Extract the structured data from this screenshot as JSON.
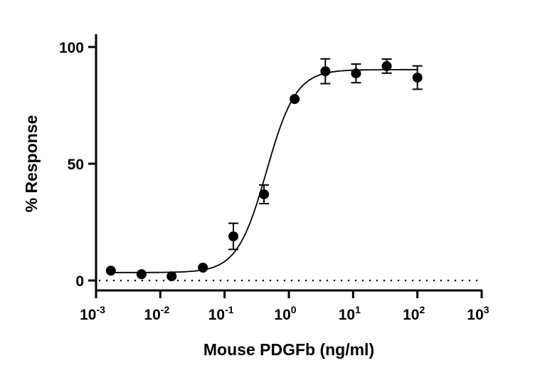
{
  "chart_data": {
    "type": "scatter",
    "xlabel": "Mouse PDGFb (ng/ml)",
    "ylabel": "% Response",
    "xscale": "log",
    "xlim": [
      0.001,
      1000
    ],
    "ylim": [
      0,
      100
    ],
    "xticks": [
      {
        "base": "10",
        "exp": "-3",
        "value": 0.001
      },
      {
        "base": "10",
        "exp": "-2",
        "value": 0.01
      },
      {
        "base": "10",
        "exp": "-1",
        "value": 0.1
      },
      {
        "base": "10",
        "exp": "0",
        "value": 1
      },
      {
        "base": "10",
        "exp": "1",
        "value": 10
      },
      {
        "base": "10",
        "exp": "2",
        "value": 100
      },
      {
        "base": "10",
        "exp": "3",
        "value": 1000
      }
    ],
    "yticks": [
      "0",
      "50",
      "100"
    ],
    "grid": false,
    "baseline": {
      "y": 0,
      "style": "dotted"
    },
    "color": "#000000",
    "points": [
      {
        "x": 0.0017,
        "y": 4.2,
        "err": 0
      },
      {
        "x": 0.0051,
        "y": 2.7,
        "err": 0
      },
      {
        "x": 0.015,
        "y": 1.8,
        "err": 0
      },
      {
        "x": 0.046,
        "y": 5.5,
        "err": 0
      },
      {
        "x": 0.137,
        "y": 18.9,
        "err": 5.6
      },
      {
        "x": 0.41,
        "y": 36.9,
        "err": 4.0
      },
      {
        "x": 1.23,
        "y": 77.7,
        "err": 0
      },
      {
        "x": 3.7,
        "y": 89.6,
        "err": 5.3
      },
      {
        "x": 11.1,
        "y": 88.7,
        "err": 4.0
      },
      {
        "x": 33.3,
        "y": 91.8,
        "err": 3.0
      },
      {
        "x": 100,
        "y": 86.9,
        "err": 5.0
      }
    ],
    "fit": {
      "model": "4PL",
      "bottom": 3.4,
      "top": 90.3,
      "ec50": 0.45,
      "hill": 1.9
    }
  }
}
